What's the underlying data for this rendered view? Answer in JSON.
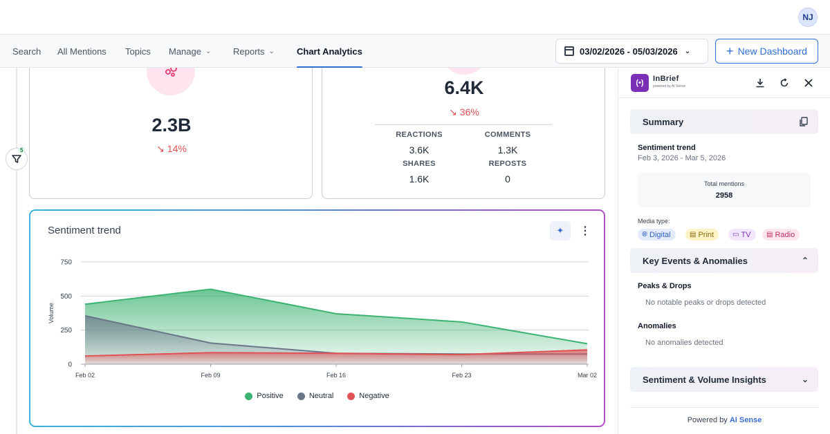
{
  "user": {
    "initials": "NJ"
  },
  "nav": {
    "items": [
      {
        "label": "Search"
      },
      {
        "label": "All Mentions"
      },
      {
        "label": "Topics"
      },
      {
        "label": "Manage"
      },
      {
        "label": "Reports"
      },
      {
        "label": "Chart Analytics"
      }
    ],
    "date_range": "03/02/2026 - 05/03/2026",
    "new_dashboard": "New Dashboard"
  },
  "filter": {
    "badge_count": "5"
  },
  "cards": {
    "reach": {
      "value": "2.3B",
      "delta": "↘ 14%"
    },
    "engagement": {
      "value": "6.4K",
      "delta": "↘ 36%",
      "metrics": [
        {
          "label": "REACTIONS",
          "value": "3.6K"
        },
        {
          "label": "COMMENTS",
          "value": "1.3K"
        },
        {
          "label": "SHARES",
          "value": "1.6K"
        },
        {
          "label": "REPOSTS",
          "value": "0"
        }
      ]
    }
  },
  "chart_data": {
    "type": "area",
    "title": "Sentiment trend",
    "xlabel": "",
    "ylabel": "Volume",
    "x": [
      "Feb 02",
      "Feb 09",
      "Feb 16",
      "Feb 23",
      "Mar 02"
    ],
    "yticks": [
      0,
      250,
      500,
      750
    ],
    "ylim": [
      0,
      750
    ],
    "grid": true,
    "legend_position": "bottom",
    "series": [
      {
        "name": "Positive",
        "color": "#3cb371",
        "values": [
          440,
          550,
          370,
          310,
          150
        ]
      },
      {
        "name": "Neutral",
        "color": "#6b7689",
        "values": [
          355,
          155,
          80,
          75,
          75
        ]
      },
      {
        "name": "Negative",
        "color": "#e05255",
        "values": [
          60,
          85,
          80,
          70,
          105
        ]
      }
    ]
  },
  "panel": {
    "brand": "InBrief",
    "brand_sub": "powered by AI Sense",
    "summary_title": "Summary",
    "trend_title": "Sentiment trend",
    "trend_dates": "Feb 3, 2026 - Mar 5, 2026",
    "total_label": "Total mentions",
    "total_value": "2958",
    "media_label": "Media type:",
    "media": [
      "Digital",
      "Print",
      "TV",
      "Radio"
    ],
    "key_events_title": "Key Events & Anomalies",
    "peaks_title": "Peaks & Drops",
    "peaks_text": "No notable peaks or drops detected",
    "anomalies_title": "Anomalies",
    "anomalies_text": "No anomalies detected",
    "insights_title": "Sentiment & Volume Insights",
    "powered_prefix": "Powered by",
    "powered_brand": "AI Sense"
  }
}
